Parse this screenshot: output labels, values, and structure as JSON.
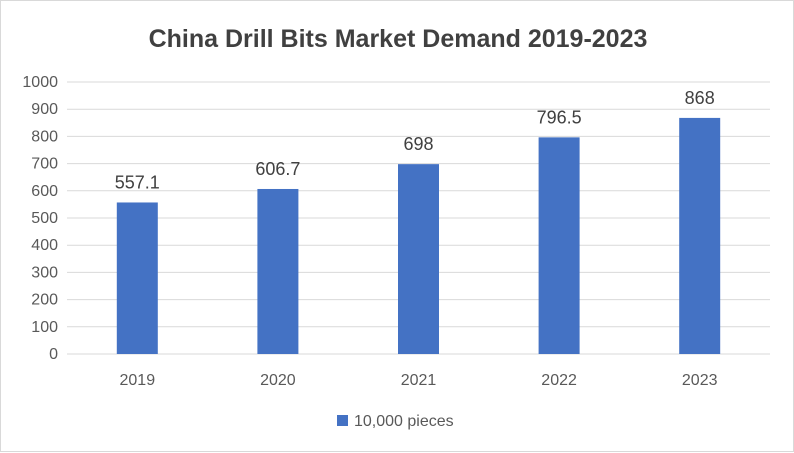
{
  "chart_data": {
    "type": "bar",
    "title": "China Drill Bits Market Demand 2019-2023",
    "categories": [
      "2019",
      "2020",
      "2021",
      "2022",
      "2023"
    ],
    "series": [
      {
        "name": "10,000 pieces",
        "values": [
          557.1,
          606.7,
          698,
          796.5,
          868
        ],
        "color": "#4472c4"
      }
    ],
    "data_labels": [
      "557.1",
      "606.7",
      "698",
      "796.5",
      "868"
    ],
    "y_ticks": [
      "0",
      "100",
      "200",
      "300",
      "400",
      "500",
      "600",
      "700",
      "800",
      "900",
      "1000"
    ],
    "ylim": [
      0,
      1000
    ],
    "grid": true,
    "legend_position": "bottom",
    "gridline_color": "#d9d9d9"
  }
}
